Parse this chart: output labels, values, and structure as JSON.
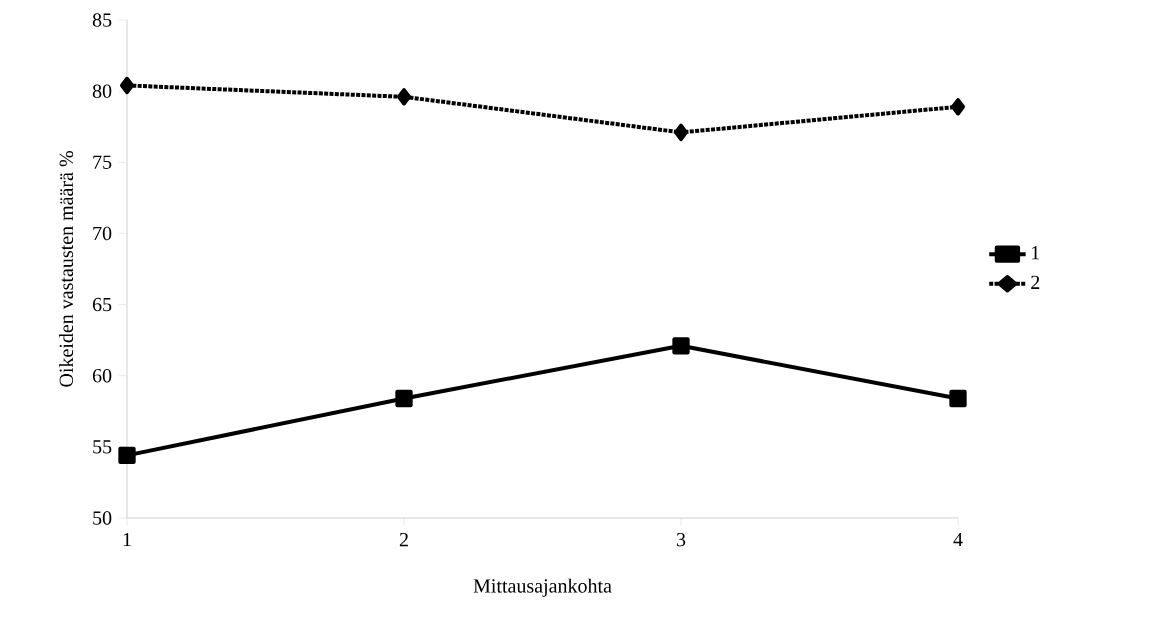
{
  "chart_data": {
    "type": "line",
    "xlabel": "Mittausajankohta",
    "ylabel": "Oikeiden vastausten määrä %",
    "x": [
      1,
      2,
      3,
      4
    ],
    "series": [
      {
        "name": "1",
        "color": "#000000",
        "values": [
          54.4,
          58.4,
          62.1,
          58.4
        ],
        "marker": "square",
        "line_style": "solid"
      },
      {
        "name": "2",
        "color": "#000000",
        "values": [
          80.4,
          79.6,
          77.1,
          78.9
        ],
        "marker": "diamond",
        "line_style": "dotted"
      }
    ],
    "xlim": [
      1,
      4
    ],
    "xticks": [
      1,
      2,
      3,
      4
    ],
    "ylim": [
      50,
      85
    ],
    "yticks": [
      50,
      55,
      60,
      65,
      70,
      75,
      80,
      85
    ],
    "grid": false,
    "legend": "right"
  }
}
